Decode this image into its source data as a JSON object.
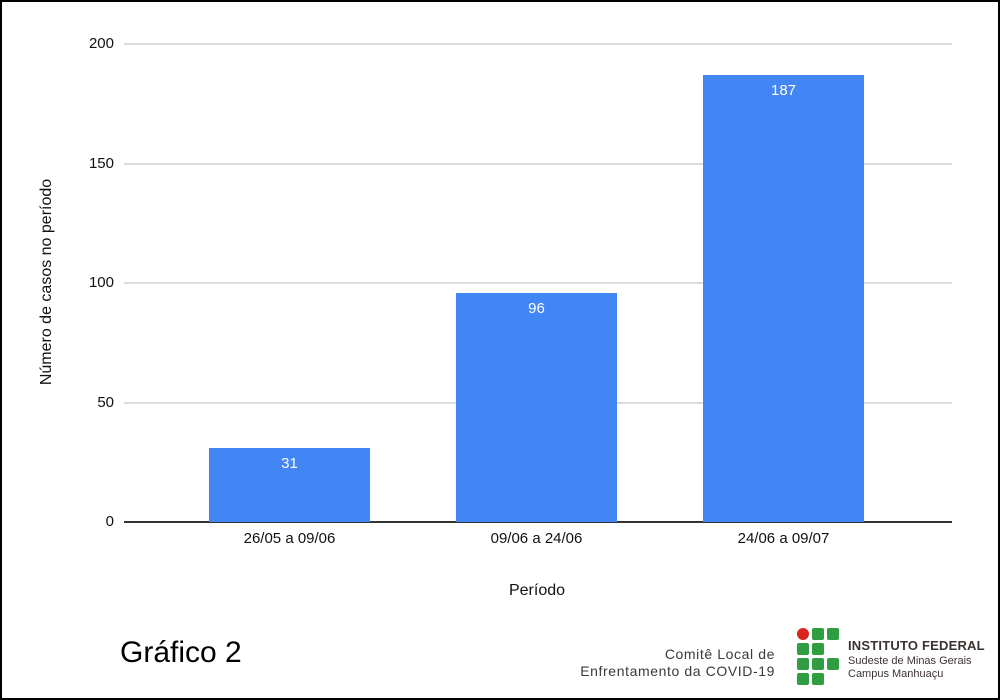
{
  "chart_data": {
    "type": "bar",
    "categories": [
      "26/05 a 09/06",
      "09/06 a 24/06",
      "24/06 a 09/07"
    ],
    "values": [
      31,
      96,
      187
    ],
    "title": "Gráfico 2",
    "xlabel": "Período",
    "ylabel": "Número de casos no período",
    "ylim": [
      0,
      200
    ],
    "yticks": [
      0,
      50,
      100,
      150,
      200
    ],
    "grid": true,
    "legend": "none",
    "bar_color": "#4285f4",
    "data_label_color": "#ffffff",
    "gridline_color": "#dadce0",
    "axis_color": "#333333"
  },
  "footer": {
    "credit_line1": "Comitê Local de",
    "credit_line2": "Enfrentamento da COVID-19",
    "logo": {
      "line1": "INSTITUTO FEDERAL",
      "line2": "Sudeste de Minas Gerais",
      "line3": "Campus Manhuaçu",
      "green": "#2f9e41",
      "red": "#d8251f",
      "grid_pattern": [
        [
          "red",
          "green",
          "green"
        ],
        [
          "green",
          "green",
          null
        ],
        [
          "green",
          "green",
          "green"
        ],
        [
          "green",
          "green",
          null
        ]
      ]
    }
  }
}
